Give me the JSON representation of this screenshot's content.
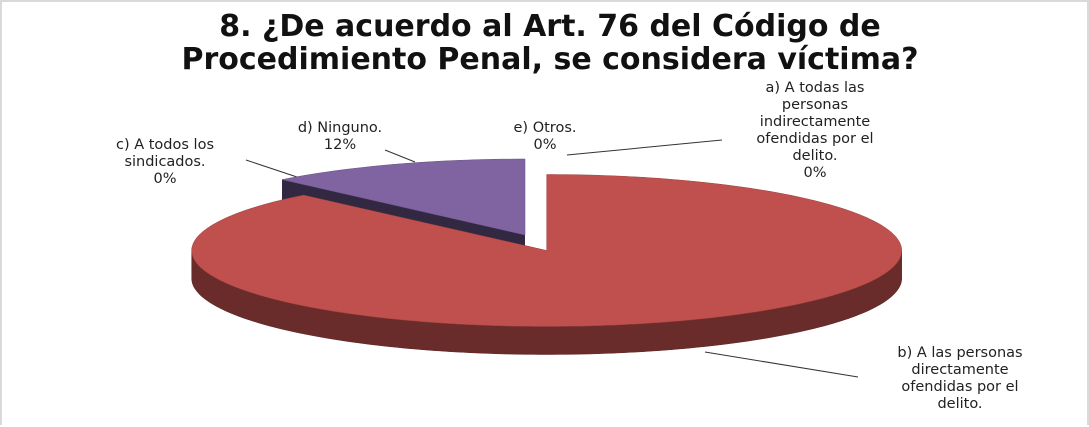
{
  "chart_data": {
    "type": "pie3d",
    "title": "8. ¿De acuerdo al Art. 76 del Código de Procedimiento Penal, se considera víctima?",
    "categories": [
      "a) A todas las personas indirectamente ofendidas por el delito.",
      "b) A las personas directamente ofendidas por el delito.",
      "c) A todos los sindicados.",
      "d) Ninguno.",
      "e) Otros."
    ],
    "values": [
      0,
      88,
      0,
      12,
      0
    ],
    "value_labels": [
      "0%",
      null,
      "0%",
      "12%",
      "0%"
    ],
    "colors": [
      "#4f81bd",
      "#c0504d",
      "#4f6228",
      "#8064a2",
      "#4bacc6"
    ],
    "exploded": [
      false,
      true,
      false,
      false,
      false
    ]
  }
}
